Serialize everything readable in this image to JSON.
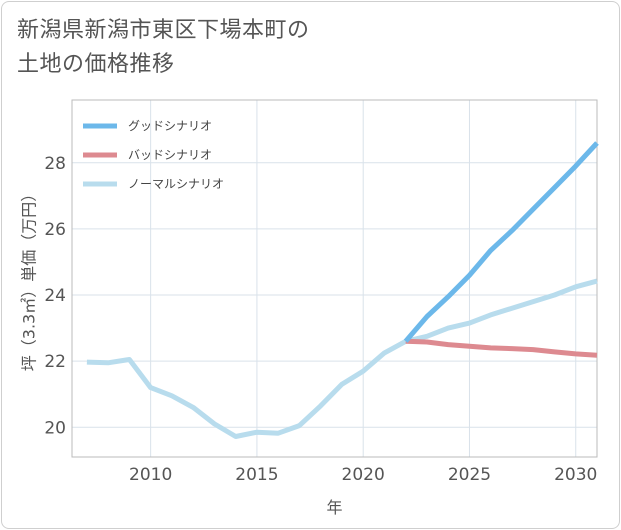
{
  "title_lines": [
    "新潟県新潟市東区下場本町の",
    "土地の価格推移"
  ],
  "chart_data": {
    "type": "line",
    "title": "新潟県新潟市東区下場本町の土地の価格推移",
    "xlabel": "年",
    "ylabel": "坪（3.3㎡）単価（万円）",
    "xlim": [
      2006.3,
      2031
    ],
    "ylim": [
      19.1,
      29.9
    ],
    "xticks": [
      2010,
      2015,
      2020,
      2025,
      2030
    ],
    "yticks": [
      20,
      22,
      24,
      26,
      28
    ],
    "grid": true,
    "legend_position": "top-left",
    "series": [
      {
        "name": "グッドシナリオ",
        "color": "#6cb8ea",
        "x": [
          2022,
          2023,
          2024,
          2025,
          2026,
          2027,
          2028,
          2029,
          2030,
          2031
        ],
        "y": [
          22.6,
          23.35,
          23.95,
          24.6,
          25.35,
          25.95,
          26.6,
          27.25,
          27.9,
          28.6
        ]
      },
      {
        "name": "バッドシナリオ",
        "color": "#dd8a90",
        "x": [
          2022,
          2023,
          2024,
          2025,
          2026,
          2027,
          2028,
          2029,
          2030,
          2031
        ],
        "y": [
          22.6,
          22.58,
          22.5,
          22.45,
          22.4,
          22.38,
          22.35,
          22.28,
          22.22,
          22.18
        ]
      },
      {
        "name": "ノーマルシナリオ",
        "color": "#b8dced",
        "x": [
          2007,
          2008,
          2009,
          2010,
          2011,
          2012,
          2013,
          2014,
          2015,
          2016,
          2017,
          2018,
          2019,
          2020,
          2021,
          2022,
          2023,
          2024,
          2025,
          2026,
          2027,
          2028,
          2029,
          2030,
          2031
        ],
        "y": [
          21.97,
          21.95,
          22.05,
          21.2,
          20.95,
          20.6,
          20.1,
          19.72,
          19.85,
          19.82,
          20.05,
          20.65,
          21.3,
          21.7,
          22.25,
          22.6,
          22.75,
          23.0,
          23.15,
          23.4,
          23.6,
          23.8,
          24.0,
          24.25,
          24.42
        ]
      }
    ]
  }
}
